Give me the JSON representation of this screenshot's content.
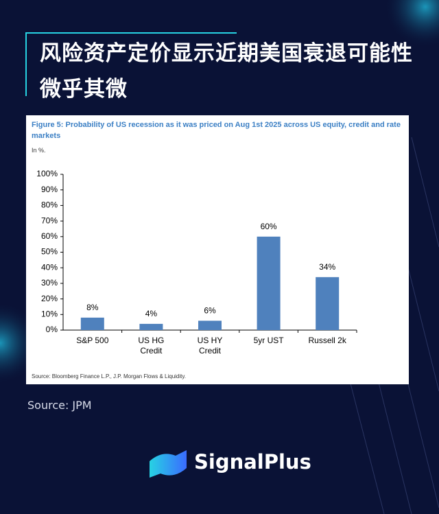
{
  "header": {
    "title": "风险资产定价显示近期美国衰退可能性微乎其微"
  },
  "chart_data": {
    "type": "bar",
    "title": "Figure 5: Probability of US recession as it was priced on Aug 1st 2025 across US equity, credit and rate markets",
    "subtitle": "In %.",
    "categories": [
      "S&P 500",
      "US HG\nCredit",
      "US HY\nCredit",
      "5yr UST",
      "Russell 2k"
    ],
    "values": [
      8,
      4,
      6,
      60,
      34
    ],
    "value_labels": [
      "8%",
      "4%",
      "6%",
      "60%",
      "34%"
    ],
    "color": "#4f81bd",
    "ylim": [
      0,
      100
    ],
    "yticks": [
      {
        "value": 0,
        "label": "0%"
      },
      {
        "value": 10,
        "label": "10%"
      },
      {
        "value": 20,
        "label": "20%"
      },
      {
        "value": 30,
        "label": "30%"
      },
      {
        "value": 40,
        "label": "40%"
      },
      {
        "value": 50,
        "label": "50%"
      },
      {
        "value": 60,
        "label": "60%"
      },
      {
        "value": 70,
        "label": "70%"
      },
      {
        "value": 80,
        "label": "80%"
      },
      {
        "value": 90,
        "label": "90%"
      },
      {
        "value": 100,
        "label": "100%"
      }
    ],
    "grid": false,
    "note": "Source: Bloomberg Finance L.P., J.P. Morgan Flows & Liquidity."
  },
  "footer": {
    "source": "Source: JPM",
    "brand": "SignalPlus"
  }
}
